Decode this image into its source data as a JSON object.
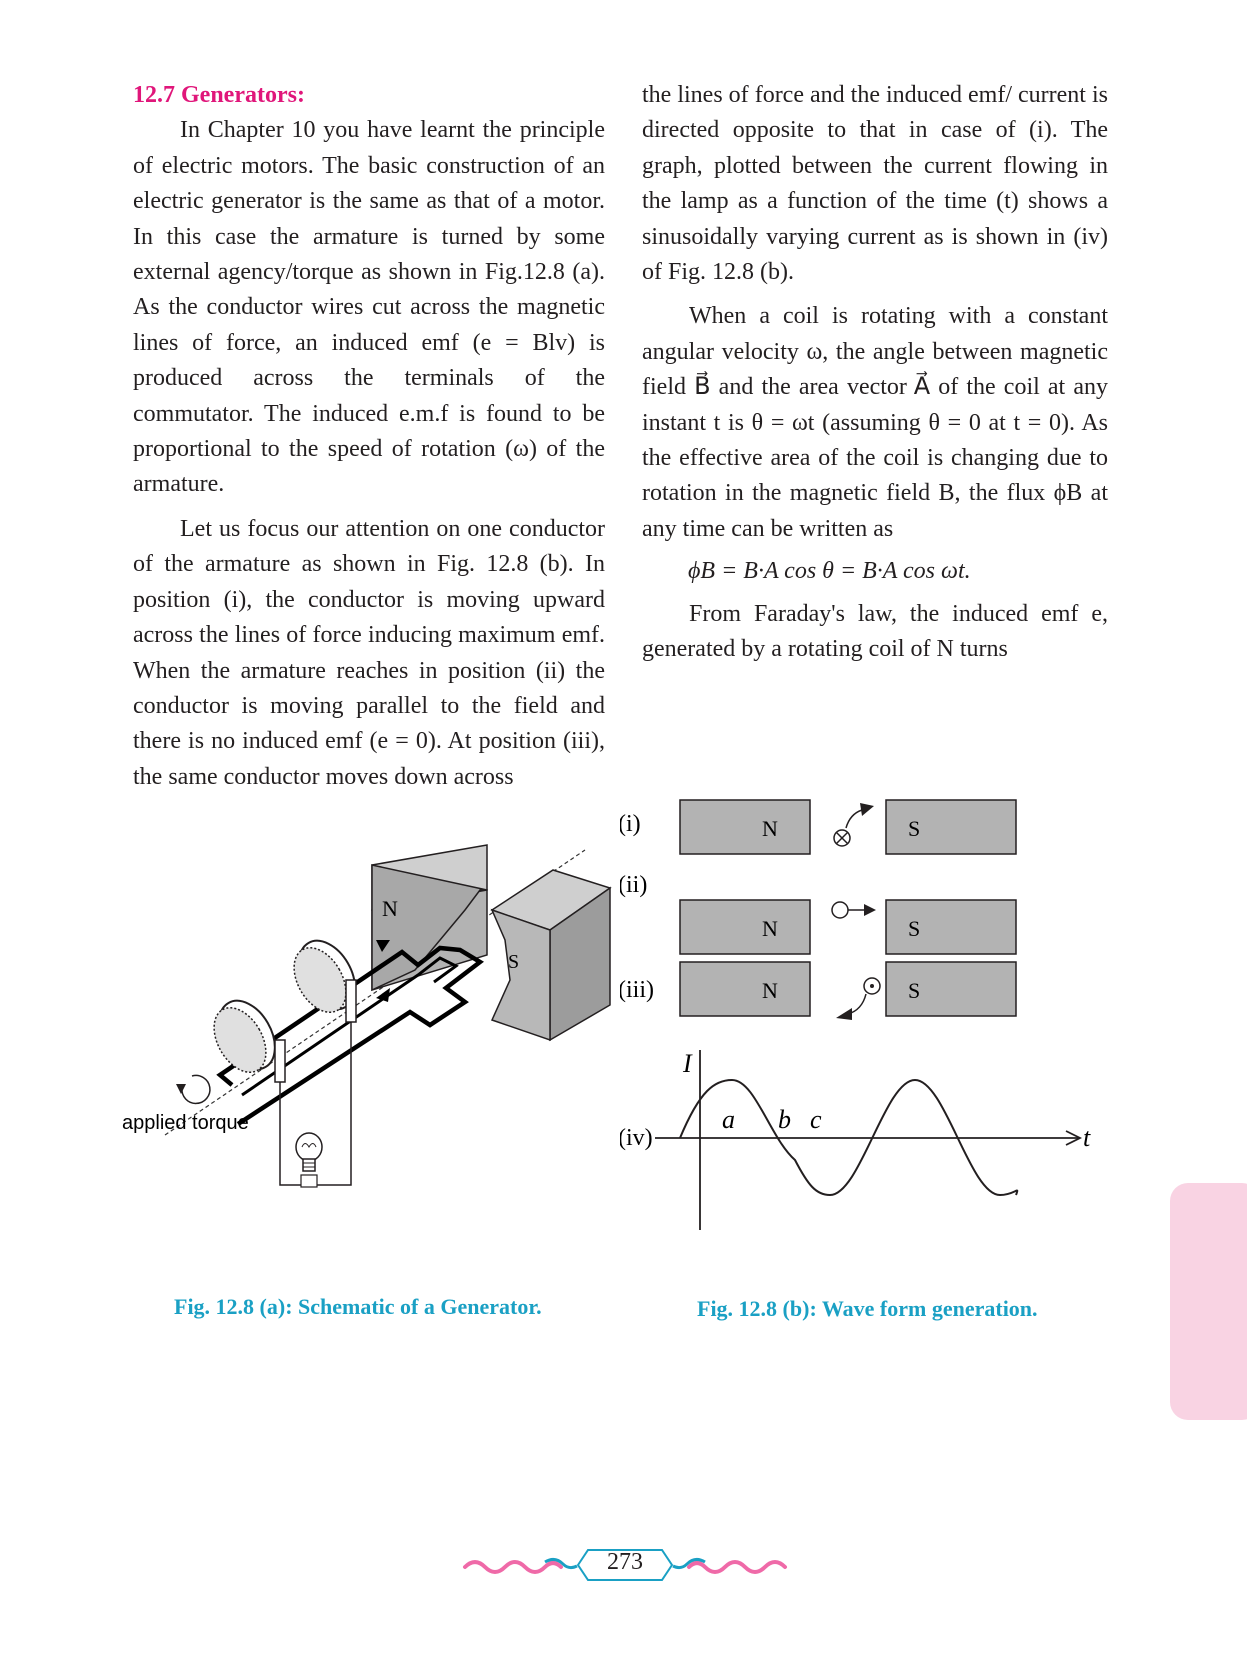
{
  "section_heading": "12.7 Generators:",
  "left_paragraphs": [
    "In Chapter 10 you have learnt the principle of electric motors. The basic construction of an electric generator is the same as that of a motor. In this case the armature is turned by some external agency/torque as shown in Fig.12.8 (a). As the conductor wires cut across the magnetic lines of force, an induced emf (e = Blv) is produced across the terminals of the commutator. The induced e.m.f is found to be proportional to the speed of rotation (ω) of the armature.",
    "Let us focus our attention on one conductor of the armature as shown in Fig. 12.8 (b). In position (i), the conductor is moving upward across the lines of force inducing maximum emf. When the armature reaches in position (ii) the conductor is moving parallel to the field and there is no induced emf (e = 0). At position (iii), the same conductor moves down across"
  ],
  "right_paragraphs": [
    "the lines of force and the induced emf/ current is directed opposite to that in case of (i). The graph, plotted between the current flowing in the lamp as a function of the time (t) shows a sinusoidally varying current as is shown in (iv) of Fig. 12.8 (b).",
    "When a coil is rotating with a constant angular velocity ω, the angle between magnetic field B⃗ and the area vector A⃗ of the coil at any instant t is θ = ωt (assuming θ = 0 at t = 0). As the effective area of the coil is changing due to rotation in the magnetic field B, the flux ϕB at any time can be written as"
  ],
  "equation": "ϕB = B·A cos θ = B·A cos ωt.",
  "right_paragraph_after": "From Faraday's law, the induced emf e, generated by a rotating coil of N turns",
  "figure_a": {
    "caption": "Fig. 12.8 (a): Schematic of a Generator.",
    "labels": {
      "north": "N",
      "south": "S",
      "torque": "applied torque"
    }
  },
  "figure_b": {
    "caption": "Fig. 12.8 (b): Wave form generation.",
    "positions": [
      "(i)",
      "(ii)",
      "(iii)",
      "(iv)"
    ],
    "north": "N",
    "south": "S",
    "graph": {
      "y_axis": "I",
      "x_axis": "t",
      "points": [
        "a",
        "b",
        "c"
      ]
    }
  },
  "page_number": "273",
  "colors": {
    "heading": "#e0167a",
    "caption": "#1aa0c4",
    "side_tab": "#f9d3e3",
    "magnet": "#b3b3b3",
    "ornament": "#ef6aa8"
  }
}
